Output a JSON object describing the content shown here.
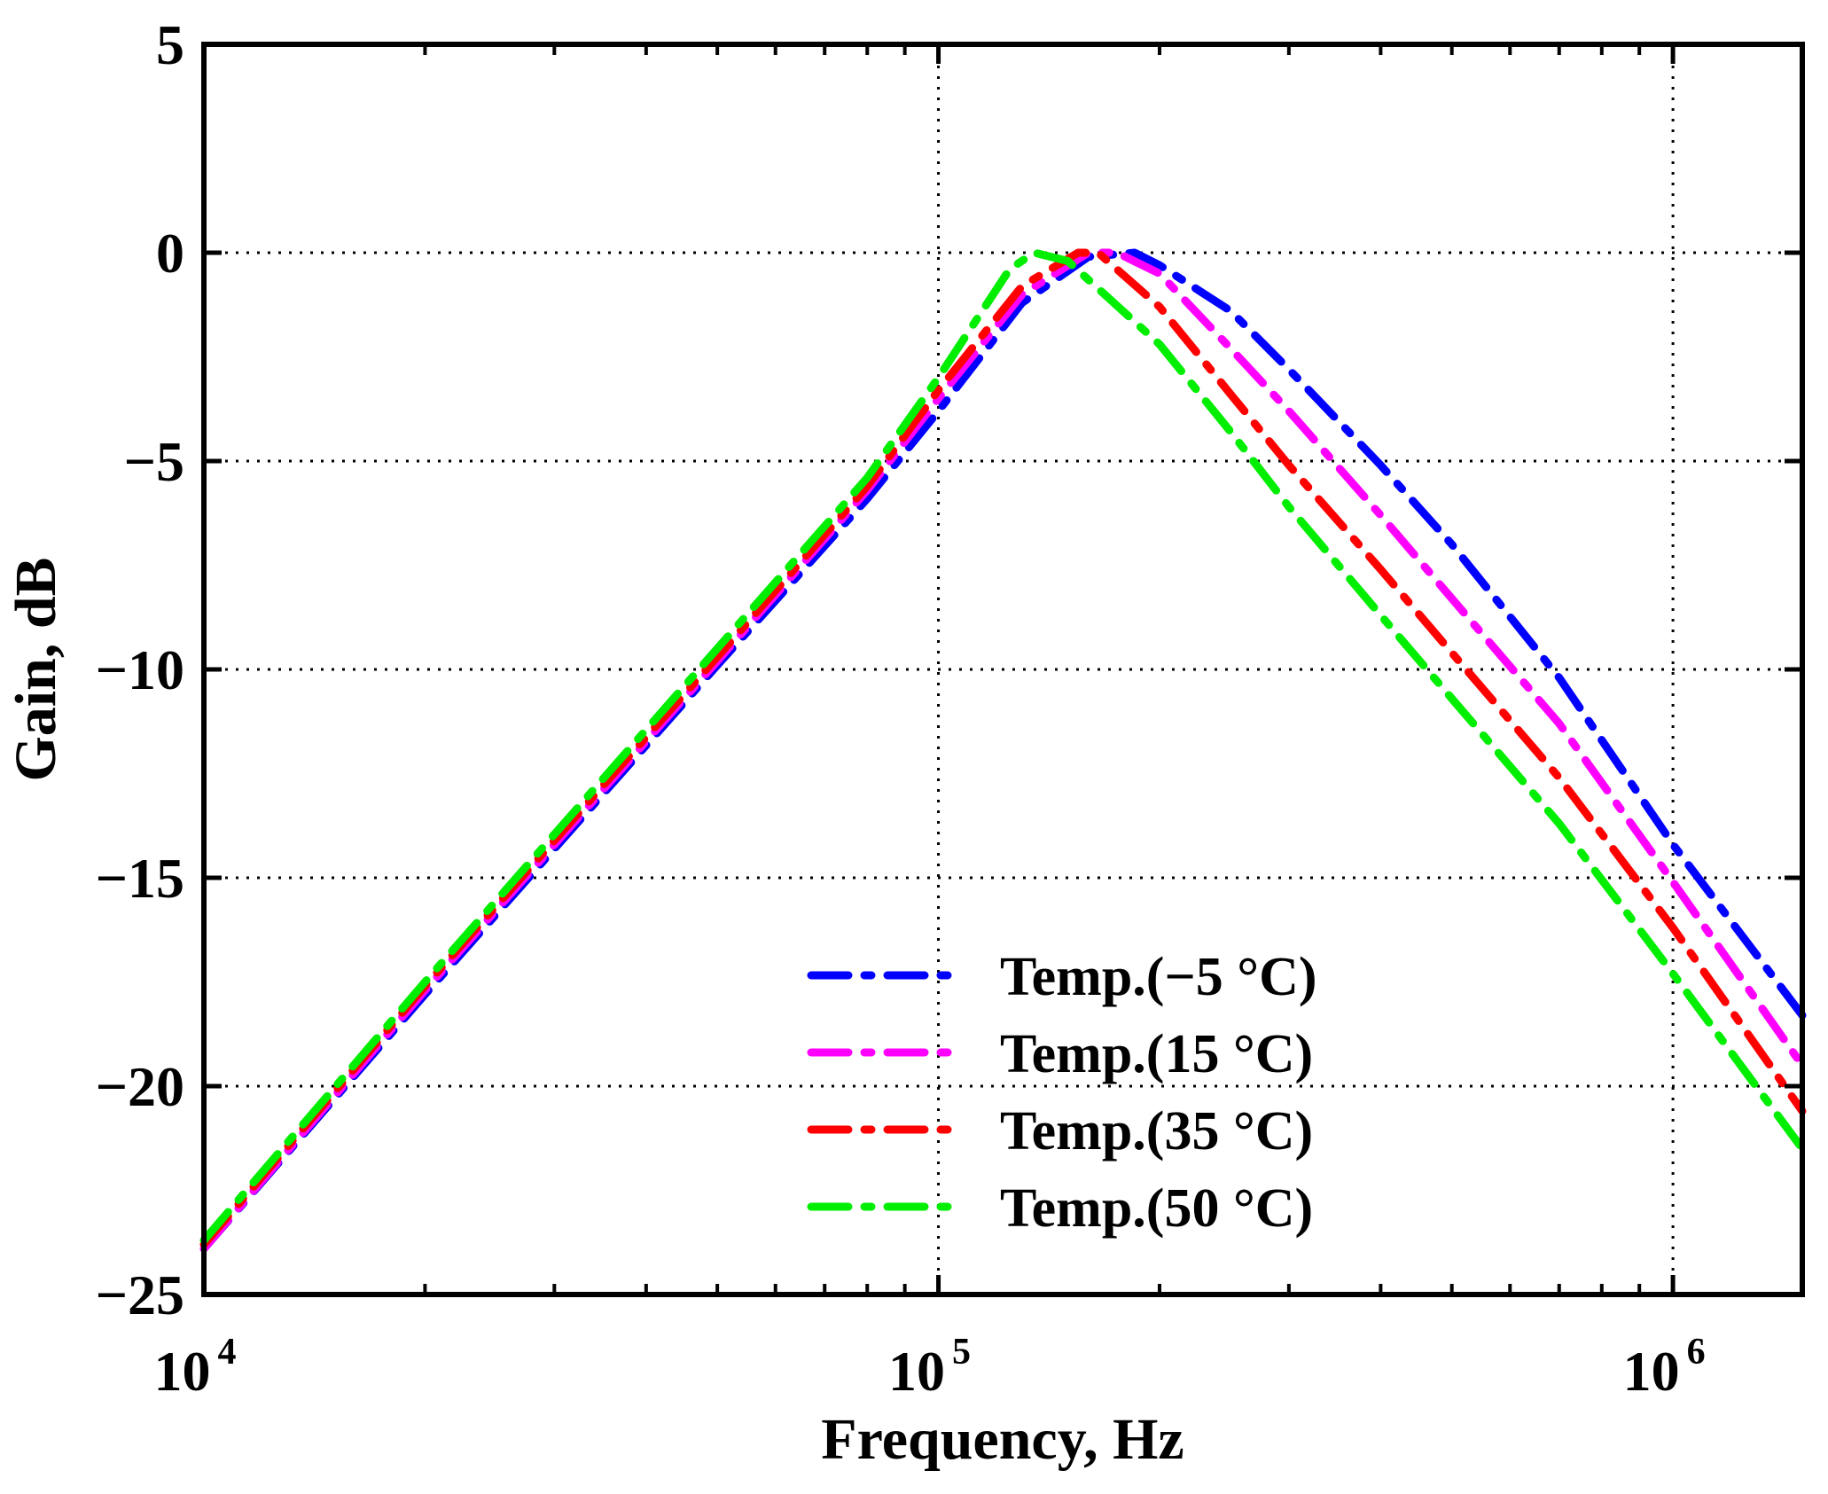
{
  "chart_data": {
    "type": "line",
    "title": "",
    "xlabel": "Frequency, Hz",
    "ylabel": "Gain, dB",
    "xscale": "log",
    "xlim": [
      10000,
      1500000
    ],
    "ylim": [
      -25,
      5
    ],
    "grid": true,
    "legend_position": "bottom-right",
    "x_ticks": [
      {
        "value": 10000,
        "base": "10",
        "exp": "4"
      },
      {
        "value": 100000,
        "base": "10",
        "exp": "5"
      },
      {
        "value": 1000000,
        "base": "10",
        "exp": "6"
      }
    ],
    "y_ticks": [
      {
        "value": 5,
        "label": "5"
      },
      {
        "value": 0,
        "label": "0"
      },
      {
        "value": -5,
        "label": "−5"
      },
      {
        "value": -10,
        "label": "−10"
      },
      {
        "value": -15,
        "label": "−15"
      },
      {
        "value": -20,
        "label": "−20"
      },
      {
        "value": -25,
        "label": "−25"
      }
    ],
    "series": [
      {
        "name": "Temp.(−5 °C)",
        "color": "#0000ff",
        "line_style": "dash-dot",
        "x": [
          10000,
          20000,
          50000,
          80000,
          100000,
          130000,
          160000,
          185000,
          200000,
          250000,
          300000,
          400000,
          500000,
          700000,
          1000000,
          1500000
        ],
        "y": [
          -23.9,
          -17.8,
          -9.9,
          -5.9,
          -3.8,
          -1.2,
          -0.1,
          0.0,
          -0.3,
          -1.4,
          -2.8,
          -5.1,
          -7.0,
          -10.2,
          -14.2,
          -18.3
        ]
      },
      {
        "name": "Temp.(15 °C)",
        "color": "#ff00ff",
        "line_style": "dash-dot",
        "x": [
          10000,
          20000,
          50000,
          80000,
          100000,
          130000,
          160000,
          175000,
          200000,
          250000,
          300000,
          400000,
          500000,
          700000,
          1000000,
          1500000
        ],
        "y": [
          -23.9,
          -17.7,
          -9.8,
          -5.7,
          -3.5,
          -1.0,
          0.0,
          0.0,
          -0.5,
          -2.3,
          -3.8,
          -6.3,
          -8.3,
          -11.3,
          -15.1,
          -19.5
        ]
      },
      {
        "name": "Temp.(35 °C)",
        "color": "#ff0000",
        "line_style": "dash-dot",
        "x": [
          10000,
          20000,
          50000,
          80000,
          100000,
          130000,
          155000,
          165000,
          200000,
          250000,
          300000,
          400000,
          500000,
          700000,
          1000000,
          1500000
        ],
        "y": [
          -23.8,
          -17.6,
          -9.7,
          -5.6,
          -3.3,
          -0.8,
          0.0,
          0.0,
          -1.3,
          -3.4,
          -5.1,
          -7.6,
          -9.6,
          -12.6,
          -16.2,
          -20.6
        ]
      },
      {
        "name": "Temp.(50 °C)",
        "color": "#00ee00",
        "line_style": "dash-dot",
        "x": [
          10000,
          20000,
          50000,
          80000,
          100000,
          125000,
          135000,
          150000,
          200000,
          250000,
          300000,
          400000,
          500000,
          700000,
          1000000,
          1500000
        ],
        "y": [
          -23.7,
          -17.5,
          -9.5,
          -5.4,
          -3.0,
          -0.4,
          0.0,
          -0.2,
          -2.2,
          -4.3,
          -6.1,
          -8.7,
          -10.7,
          -13.7,
          -17.3,
          -21.5
        ]
      }
    ]
  }
}
